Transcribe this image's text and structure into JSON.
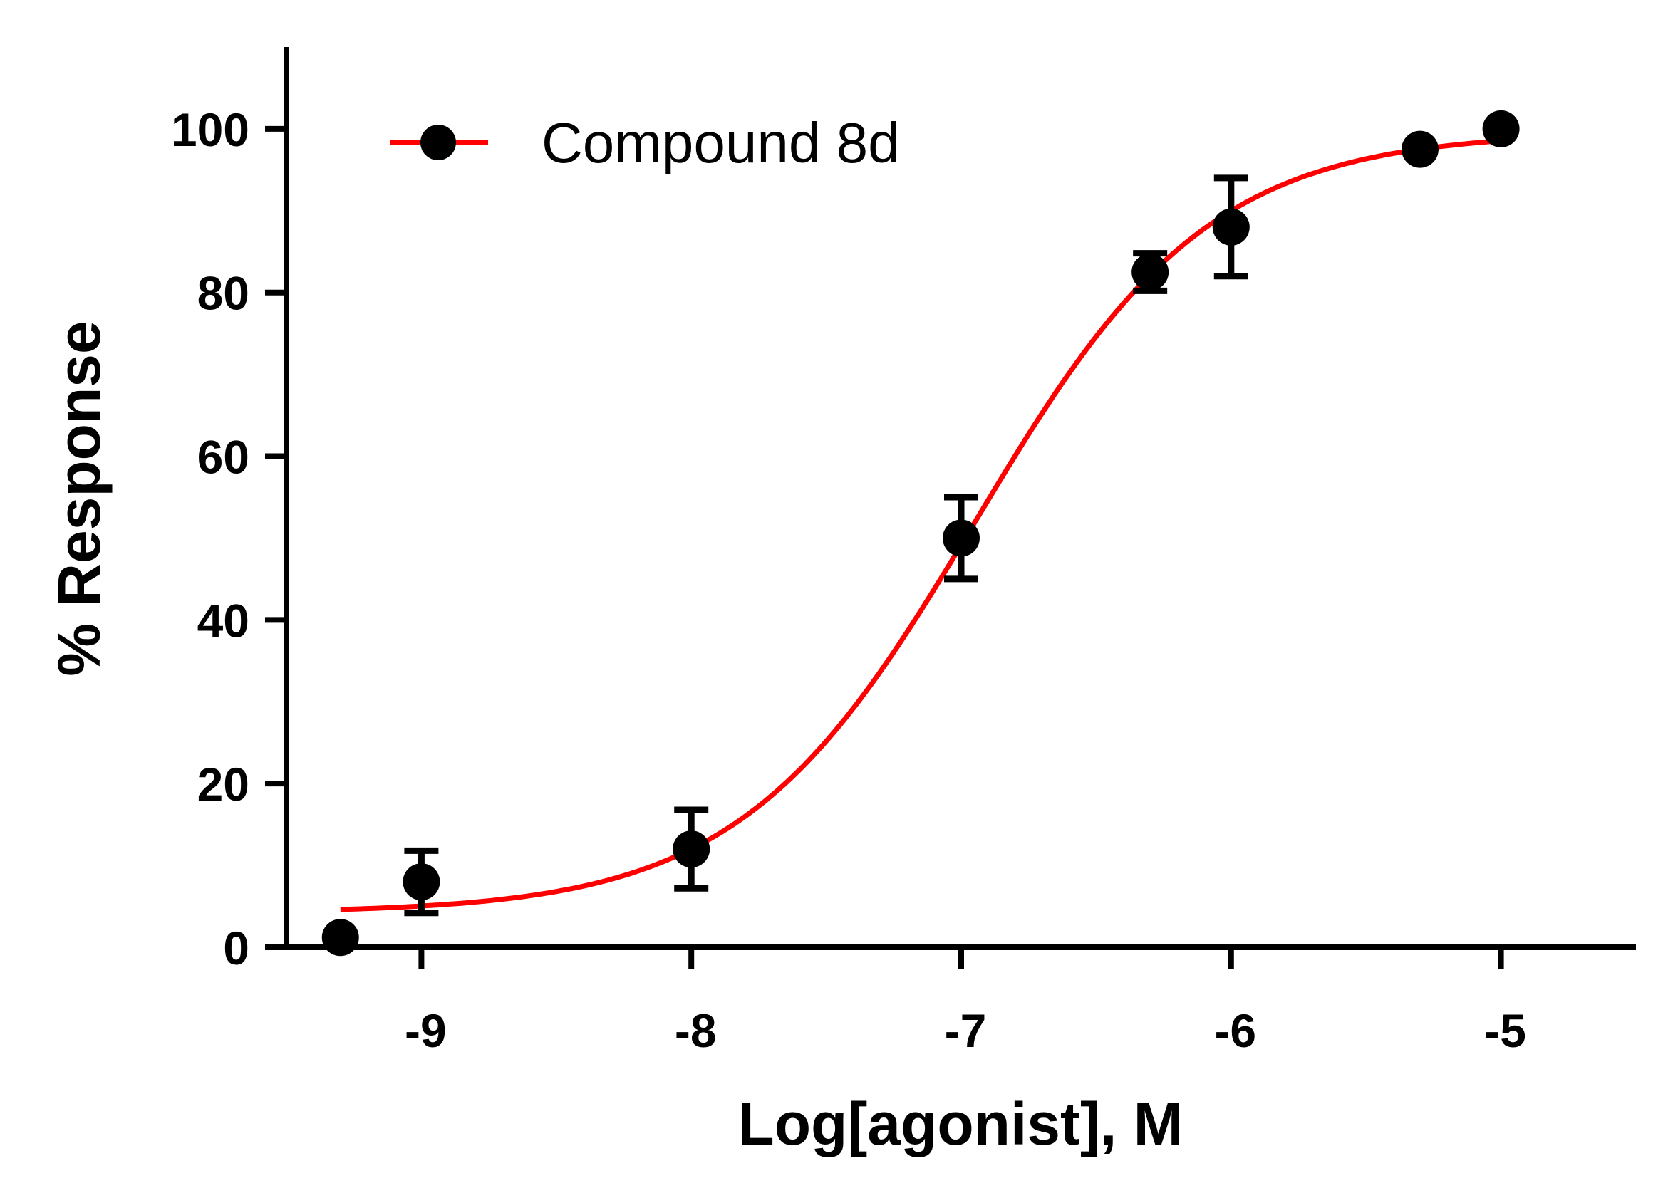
{
  "chart_data": {
    "type": "scatter",
    "title": "",
    "xlabel": "Log[agonist], M",
    "ylabel": "% Response",
    "xlim": [
      -9.5,
      -4.5
    ],
    "ylim": [
      0,
      110
    ],
    "x_ticks": [
      -9,
      -8,
      -7,
      -6,
      -5
    ],
    "x_tick_labels": [
      "-9",
      "-8",
      "-7",
      "-6",
      "-5"
    ],
    "y_ticks": [
      0,
      20,
      40,
      60,
      80,
      100
    ],
    "y_tick_labels": [
      "0",
      "20",
      "40",
      "60",
      "80",
      "100"
    ],
    "grid": false,
    "legend": {
      "position": "top-left",
      "entries": [
        "Compound 8d"
      ]
    },
    "series": [
      {
        "name": "Compound 8d",
        "marker_color": "#000000",
        "line_color": "#ff0000",
        "points": [
          {
            "x": -9.3,
            "y": 1.2,
            "err": 0
          },
          {
            "x": -9.0,
            "y": 8.0,
            "err": 3.8
          },
          {
            "x": -8.0,
            "y": 12.0,
            "err": 4.8
          },
          {
            "x": -7.0,
            "y": 50.0,
            "err": 5.0
          },
          {
            "x": -6.3,
            "y": 82.5,
            "err": 2.3
          },
          {
            "x": -6.0,
            "y": 88.0,
            "err": 6.0
          },
          {
            "x": -5.3,
            "y": 97.5,
            "err": 0
          },
          {
            "x": -5.0,
            "y": 100.0,
            "err": 0
          }
        ],
        "fit": {
          "model": "sigmoidal dose-response",
          "bottom": 4.2,
          "top": 99.6,
          "log_ec50": -6.95,
          "hill_slope": 1.0,
          "x_range": [
            -9.3,
            -5.0
          ]
        }
      }
    ]
  }
}
